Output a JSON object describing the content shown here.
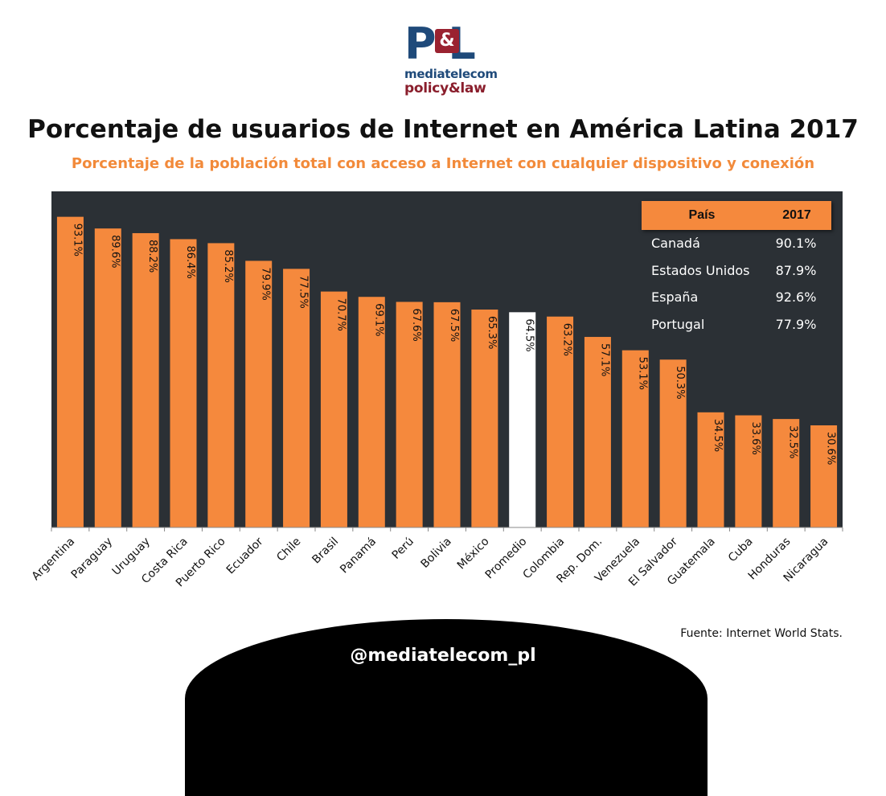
{
  "logo": {
    "mark": "P L",
    "amp": "&",
    "line1": "mediatelecom",
    "line2": "policy&law"
  },
  "header": {
    "title": "Porcentaje de usuarios de Internet en América Latina 2017",
    "subtitle": "Porcentaje de la población total con acceso a Internet con cualquier dispositivo y conexión"
  },
  "chart_data": {
    "type": "bar",
    "title": "Porcentaje de usuarios de Internet en América Latina 2017",
    "subtitle": "Porcentaje de la población total con acceso a Internet con cualquier dispositivo y conexión",
    "categories": [
      "Argentina",
      "Paraguay",
      "Uruguay",
      "Costa Rica",
      "Puerto Rico",
      "Ecuador",
      "Chile",
      "Brasil",
      "Panamá",
      "Perú",
      "Bolivia",
      "México",
      "Promedio",
      "Colombia",
      "Rep. Dom.",
      "Venezuela",
      "El Salvador",
      "Guatemala",
      "Cuba",
      "Honduras",
      "Nicaragua"
    ],
    "values": [
      93.1,
      89.6,
      88.2,
      86.4,
      85.2,
      79.9,
      77.5,
      70.7,
      69.1,
      67.6,
      67.5,
      65.3,
      64.5,
      63.2,
      57.1,
      53.1,
      50.3,
      34.5,
      33.6,
      32.5,
      30.6
    ],
    "value_labels": [
      "93.1%",
      "89.6%",
      "88.2%",
      "86.4%",
      "85.2%",
      "79.9%",
      "77.5%",
      "70.7%",
      "69.1%",
      "67.6%",
      "67.5%",
      "65.3%",
      "64.5%",
      "63.2%",
      "57.1%",
      "53.1%",
      "50.3%",
      "34.5%",
      "33.6%",
      "32.5%",
      "30.6%"
    ],
    "highlight_category": "Promedio",
    "ylim": [
      0,
      100
    ],
    "grid": false,
    "colors": {
      "bar": "#f5893d",
      "highlight": "#ffffff",
      "plot_bg": "#2b3035",
      "axis": "#888888"
    }
  },
  "legend_table": {
    "headers": [
      "País",
      "2017"
    ],
    "rows": [
      [
        "Canadá",
        "90.1%"
      ],
      [
        "Estados Unidos",
        "87.9%"
      ],
      [
        "España",
        "92.6%"
      ],
      [
        "Portugal",
        "77.9%"
      ]
    ]
  },
  "source": "Fuente: Internet World Stats.",
  "footer": {
    "handle": "@mediatelecom_pl"
  }
}
